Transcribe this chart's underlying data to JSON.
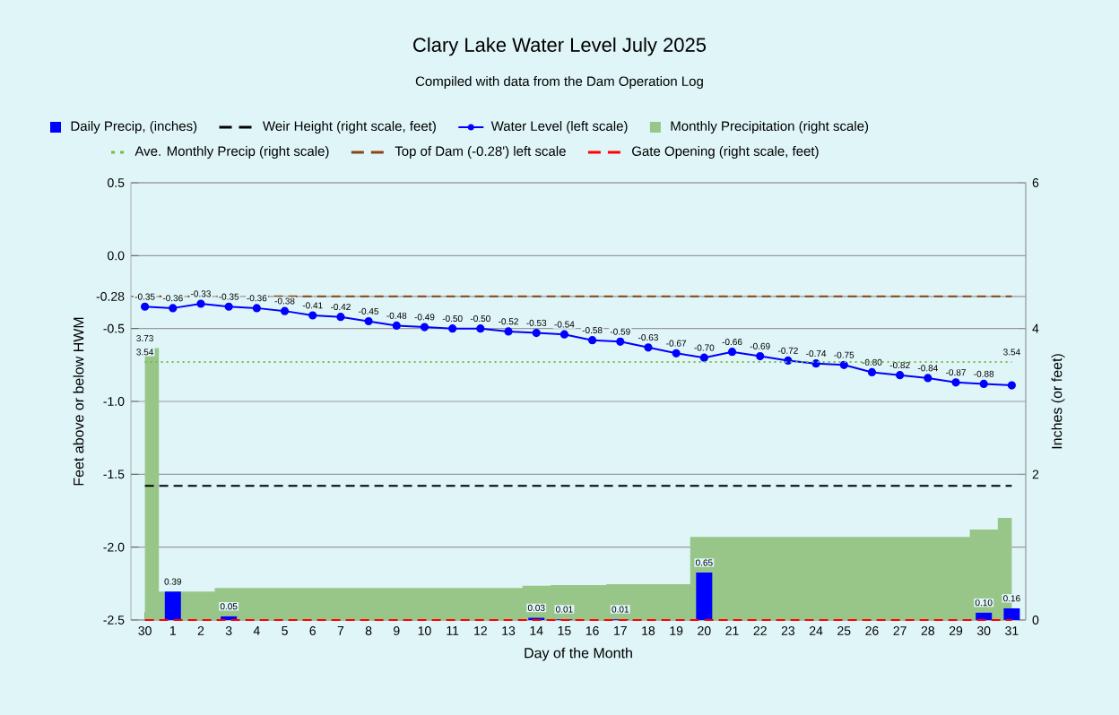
{
  "chart_data": {
    "type": "line",
    "title": "Clary Lake Water Level July 2025",
    "subtitle": "Compiled with data from the Dam Operation Log",
    "xlabel": "Day of the Month",
    "ylabel": "Feet above or below HWM",
    "y2label": "Inches (or feet)",
    "categories": [
      "30",
      "1",
      "2",
      "3",
      "4",
      "5",
      "6",
      "7",
      "8",
      "9",
      "10",
      "11",
      "12",
      "13",
      "14",
      "15",
      "16",
      "17",
      "18",
      "19",
      "20",
      "21",
      "22",
      "23",
      "24",
      "25",
      "26",
      "27",
      "28",
      "29",
      "30",
      "31"
    ],
    "ylim": [
      -2.5,
      0.5
    ],
    "yticks": [
      -2.5,
      {
        "value": -2.0,
        "label": "-2.0"
      },
      -1.5,
      {
        "value": -1.0,
        "label": "-1.0"
      },
      -0.5,
      -0.28,
      {
        "value": 0,
        "label": "0.0"
      },
      0.5
    ],
    "y2lim": [
      0,
      6
    ],
    "y2ticks": [
      0,
      2,
      4,
      6
    ],
    "grid": "y",
    "legend": "top",
    "series": [
      {
        "name": "Daily Precip, (inches)",
        "type": "bar",
        "axis": "y2",
        "color": "#0000ff",
        "values": [
          null,
          0.39,
          null,
          0.05,
          null,
          null,
          null,
          null,
          null,
          null,
          null,
          null,
          null,
          null,
          0.03,
          0.01,
          null,
          0.01,
          null,
          null,
          0.65,
          null,
          null,
          null,
          null,
          null,
          null,
          null,
          null,
          null,
          0.1,
          0.16
        ],
        "value_labels": [
          null,
          "0.39",
          null,
          "0.05",
          null,
          null,
          null,
          null,
          null,
          null,
          null,
          null,
          null,
          null,
          "0.03",
          "0.01",
          null,
          "0.01",
          null,
          null,
          "0.65",
          null,
          null,
          null,
          null,
          null,
          null,
          null,
          null,
          null,
          "0.10",
          "0.16"
        ]
      },
      {
        "name": "Weir Height (right scale, feet)",
        "type": "line",
        "axis": "y2",
        "color": "#000000",
        "line_style": "dashed",
        "values": [
          1.84,
          1.84,
          1.84,
          1.84,
          1.84,
          1.84,
          1.84,
          1.84,
          1.84,
          1.84,
          1.84,
          1.84,
          1.84,
          1.84,
          1.84,
          1.84,
          1.84,
          1.84,
          1.84,
          1.84,
          1.84,
          1.84,
          1.84,
          1.84,
          1.84,
          1.84,
          1.84,
          1.84,
          1.84,
          1.84,
          1.84,
          1.84
        ]
      },
      {
        "name": "Water Level (left scale)",
        "type": "line",
        "color": "#0000ff",
        "marker": "circle",
        "values": [
          -0.35,
          -0.36,
          -0.33,
          -0.35,
          -0.36,
          -0.38,
          -0.41,
          -0.42,
          -0.45,
          -0.48,
          -0.49,
          -0.5,
          -0.5,
          -0.52,
          -0.53,
          -0.54,
          -0.58,
          -0.59,
          -0.63,
          -0.67,
          -0.7,
          -0.66,
          -0.69,
          -0.72,
          -0.74,
          -0.75,
          -0.8,
          -0.82,
          -0.84,
          -0.87,
          -0.88,
          -0.89
        ],
        "value_labels": [
          "-0.35",
          "-0.36",
          "-0.33",
          "-0.35",
          "-0.36",
          "-0.38",
          "-0.41",
          "-0.42",
          "-0.45",
          "-0.48",
          "-0.49",
          "-0.50",
          "-0.50",
          "-0.52",
          "-0.53",
          "-0.54",
          "-0.58",
          "-0.59",
          "-0.63",
          "-0.67",
          "-0.70",
          "-0.66",
          "-0.69",
          "-0.72",
          "-0.74",
          "-0.75",
          "-0.80",
          "-0.82",
          "-0.84",
          "-0.87",
          "-0.88",
          null
        ]
      },
      {
        "name": "Monthly Precipitation (right scale)",
        "type": "area",
        "axis": "y2",
        "color": "#98c689",
        "values": [
          3.73,
          0.39,
          0.39,
          0.44,
          0.44,
          0.44,
          0.44,
          0.44,
          0.44,
          0.44,
          0.44,
          0.44,
          0.44,
          0.44,
          0.47,
          0.48,
          0.48,
          0.49,
          0.49,
          0.49,
          1.14,
          1.14,
          1.14,
          1.14,
          1.14,
          1.14,
          1.14,
          1.14,
          1.14,
          1.14,
          1.24,
          1.4
        ],
        "value_labels": [
          "3.73",
          null,
          null,
          null,
          null,
          null,
          null,
          null,
          null,
          null,
          null,
          null,
          null,
          null,
          null,
          null,
          null,
          null,
          null,
          null,
          null,
          null,
          null,
          null,
          null,
          null,
          null,
          null,
          null,
          null,
          null,
          null
        ]
      },
      {
        "name": "Ave. Monthly Precip (right scale)",
        "type": "line",
        "axis": "y2",
        "color": "#77bb44",
        "line_style": "dotted",
        "values": [
          3.54,
          3.54,
          3.54,
          3.54,
          3.54,
          3.54,
          3.54,
          3.54,
          3.54,
          3.54,
          3.54,
          3.54,
          3.54,
          3.54,
          3.54,
          3.54,
          3.54,
          3.54,
          3.54,
          3.54,
          3.54,
          3.54,
          3.54,
          3.54,
          3.54,
          3.54,
          3.54,
          3.54,
          3.54,
          3.54,
          3.54,
          3.54
        ],
        "value_labels": [
          "3.54",
          null,
          null,
          null,
          null,
          null,
          null,
          null,
          null,
          null,
          null,
          null,
          null,
          null,
          null,
          null,
          null,
          null,
          null,
          null,
          null,
          null,
          null,
          null,
          null,
          null,
          null,
          null,
          null,
          null,
          null,
          "3.54"
        ]
      },
      {
        "name": "Top of Dam (-0.28') left scale",
        "type": "line",
        "color": "#8b4513",
        "line_style": "dashed",
        "values": [
          -0.28,
          -0.28,
          -0.28,
          -0.28,
          -0.28,
          -0.28,
          -0.28,
          -0.28,
          -0.28,
          -0.28,
          -0.28,
          -0.28,
          -0.28,
          -0.28,
          -0.28,
          -0.28,
          -0.28,
          -0.28,
          -0.28,
          -0.28,
          -0.28,
          -0.28,
          -0.28,
          -0.28,
          -0.28,
          -0.28,
          -0.28,
          -0.28,
          -0.28,
          -0.28,
          -0.28,
          -0.28
        ]
      },
      {
        "name": "Gate Opening (right scale, feet)",
        "type": "line",
        "axis": "y2",
        "color": "#ff0000",
        "line_style": "dashed",
        "values": [
          0,
          0,
          0,
          0,
          0,
          0,
          0,
          0,
          0,
          0,
          0,
          0,
          0,
          0,
          0,
          0,
          0,
          0,
          0,
          0,
          0,
          0,
          0,
          0,
          0,
          0,
          0,
          0,
          0,
          0,
          0,
          0
        ]
      }
    ]
  }
}
